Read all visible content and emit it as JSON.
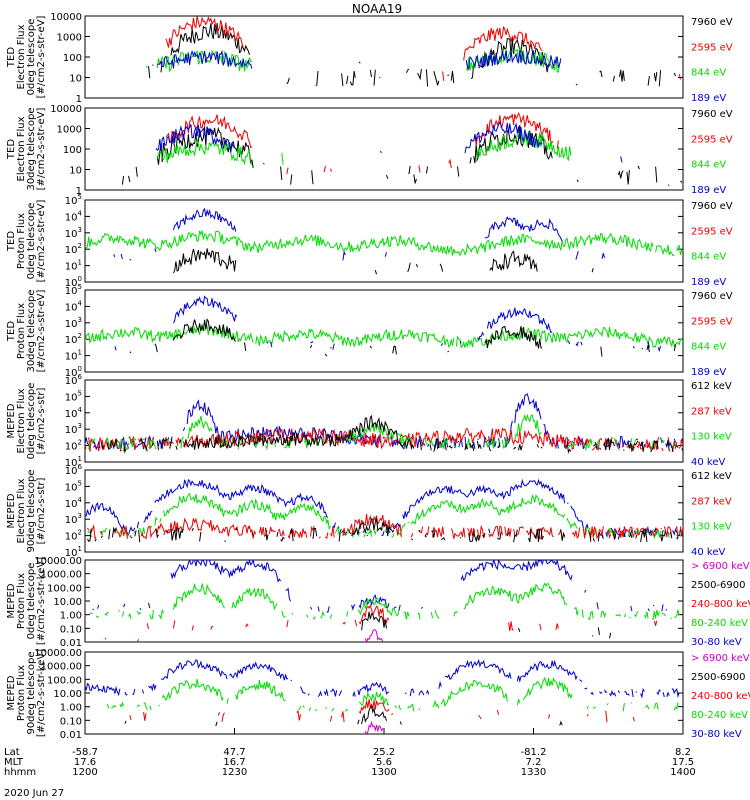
{
  "title": "NOAA19",
  "date_label": "2020 Jun 27",
  "colors": {
    "black": "#000000",
    "red": "#ee0000",
    "green": "#00dd00",
    "blue": "#0000cc",
    "magenta": "#cc00cc"
  },
  "x_axis": {
    "row_labels": [
      "Lat",
      "MLT",
      "hhmm"
    ],
    "ticks": [
      {
        "lat": "-58.7",
        "mlt": "17.6",
        "time": "1200"
      },
      {
        "lat": "47.7",
        "mlt": "16.7",
        "time": "1230"
      },
      {
        "lat": "25.2",
        "mlt": "5.6",
        "time": "1300"
      },
      {
        "lat": "-81.2",
        "mlt": "7.2",
        "time": "1330"
      },
      {
        "lat": "8.2",
        "mlt": "17.5",
        "time": "1400"
      }
    ]
  },
  "chart_data": [
    {
      "type": "line",
      "ylog": true,
      "ylabel": [
        "TED",
        "Electron Flux",
        "0deg telescope",
        "[#/cm2-s-str-eV]"
      ],
      "yticks": [
        "10000",
        "1000",
        "100",
        "10",
        "1"
      ],
      "legend": [
        {
          "label": "7960 eV",
          "color": "black"
        },
        {
          "label": "2595 eV",
          "color": "red"
        },
        {
          "label": "844 eV",
          "color": "green"
        },
        {
          "label": "189 eV",
          "color": "blue"
        }
      ],
      "series": [
        {
          "color": "black",
          "base": 10,
          "bumps": [
            [
              12.5,
              2.5,
              1800
            ],
            [
              43,
              2.2,
              300
            ]
          ],
          "fill": 0.35,
          "noise": 0.45
        },
        {
          "color": "red",
          "base": 8,
          "bumps": [
            [
              12,
              2.5,
              5000
            ],
            [
              42,
              2.5,
              1500
            ]
          ],
          "fill": 0.12,
          "noise": 0.35
        },
        {
          "color": "green",
          "base": 30,
          "bumps": [
            [
              12,
              3,
              80
            ],
            [
              43,
              3,
              100
            ]
          ],
          "fill": 0.1,
          "noise": 0.4
        },
        {
          "color": "blue",
          "base": 40,
          "bumps": [
            [
              12,
              3,
              60
            ],
            [
              43,
              3,
              70
            ]
          ],
          "fill": 0.06,
          "noise": 0.35
        }
      ]
    },
    {
      "type": "line",
      "ylog": true,
      "ylabel": [
        "TED",
        "Electron Flux",
        "30deg telescope",
        "[#/cm2-s-str-eV]"
      ],
      "yticks": [
        "10000",
        "1000",
        "100",
        "10",
        "1"
      ],
      "legend": [
        {
          "label": "7960 eV",
          "color": "black"
        },
        {
          "label": "2595 eV",
          "color": "red"
        },
        {
          "label": "844 eV",
          "color": "green"
        },
        {
          "label": "189 eV",
          "color": "blue"
        }
      ],
      "series": [
        {
          "color": "black",
          "base": 5,
          "bumps": [
            [
              12,
              3,
              400
            ],
            [
              43,
              2.5,
              500
            ]
          ],
          "fill": 0.25,
          "noise": 0.5
        },
        {
          "color": "red",
          "base": 10,
          "bumps": [
            [
              12.5,
              2.7,
              2500
            ],
            [
              43,
              2.5,
              3000
            ]
          ],
          "fill": 0.12,
          "noise": 0.35
        },
        {
          "color": "green",
          "base": 30,
          "bumps": [
            [
              12,
              3,
              100
            ],
            [
              44,
              3,
              300
            ]
          ],
          "fill": 0.06,
          "noise": 0.4
        },
        {
          "color": "blue",
          "base": 40,
          "bumps": [
            [
              11,
              2.5,
              700
            ],
            [
              42,
              2.5,
              900
            ]
          ],
          "fill": 0.06,
          "noise": 0.35
        }
      ]
    },
    {
      "type": "line",
      "ylog": true,
      "ylabel": [
        "TED",
        "Proton Flux",
        "0deg telescope",
        "[#/cm2-s-str-eV]"
      ],
      "yticks": [
        "10^5",
        "10^4",
        "10^3",
        "10^2",
        "10^1",
        "10^0"
      ],
      "legend": [
        {
          "label": "7960 eV",
          "color": "black"
        },
        {
          "label": "2595 eV",
          "color": "red"
        },
        {
          "label": "844 eV",
          "color": "green"
        },
        {
          "label": "189 eV",
          "color": "blue"
        }
      ],
      "series": [
        {
          "color": "green",
          "base": 80,
          "bumps": [
            [
              3,
              3,
              400
            ],
            [
              12,
              3,
              600
            ],
            [
              22,
              3,
              300
            ],
            [
              31,
              3,
              250
            ],
            [
              44,
              3,
              300
            ],
            [
              52,
              3,
              400
            ]
          ],
          "fill": 0.95,
          "noise": 0.35
        },
        {
          "color": "blue",
          "base": 40,
          "bumps": [
            [
              12,
              2,
              15000
            ],
            [
              42.5,
              1.5,
              5000
            ],
            [
              46,
              1.2,
              4000
            ]
          ],
          "fill": 0.18,
          "noise": 0.3
        },
        {
          "color": "black",
          "base": 5,
          "bumps": [
            [
              12,
              2,
              40
            ],
            [
              43,
              1.5,
              20
            ]
          ],
          "fill": 0.1,
          "noise": 0.5
        }
      ]
    },
    {
      "type": "line",
      "ylog": true,
      "ylabel": [
        "TED",
        "Proton Flux",
        "30deg telescope",
        "[#/cm2-s-str-eV]"
      ],
      "yticks": [
        "10^5",
        "10^4",
        "10^3",
        "10^2",
        "10^1",
        "10^0"
      ],
      "legend": [
        {
          "label": "7960 eV",
          "color": "black"
        },
        {
          "label": "2595 eV",
          "color": "red"
        },
        {
          "label": "844 eV",
          "color": "green"
        },
        {
          "label": "189 eV",
          "color": "blue"
        }
      ],
      "series": [
        {
          "color": "green",
          "base": 60,
          "bumps": [
            [
              4,
              3,
              200
            ],
            [
              12,
              3,
              300
            ],
            [
              22,
              3,
              150
            ],
            [
              32,
              3,
              150
            ],
            [
              44,
              3,
              150
            ],
            [
              52,
              3,
              200
            ]
          ],
          "fill": 0.95,
          "noise": 0.35
        },
        {
          "color": "blue",
          "base": 40,
          "bumps": [
            [
              12,
              2,
              20000
            ],
            [
              43.5,
              2,
              5000
            ]
          ],
          "fill": 0.2,
          "noise": 0.3
        },
        {
          "color": "black",
          "base": 20,
          "bumps": [
            [
              12,
              2,
              800
            ],
            [
              43,
              1.8,
              300
            ]
          ],
          "fill": 0.2,
          "noise": 0.4
        }
      ]
    },
    {
      "type": "line",
      "ylog": true,
      "ylabel": [
        "MEPED",
        "Electron Flux",
        "0deg telescope",
        "[#/cm2-s-str]"
      ],
      "yticks": [
        "10^6",
        "10^5",
        "10^4",
        "10^3",
        "10^2",
        "10^1"
      ],
      "legend": [
        {
          "label": "612 keV",
          "color": "black"
        },
        {
          "label": "287 keV",
          "color": "red"
        },
        {
          "label": "130 keV",
          "color": "green"
        },
        {
          "label": "40 keV",
          "color": "blue"
        }
      ],
      "series": [
        {
          "color": "blue",
          "base": 150,
          "bumps": [
            [
              11.5,
              0.8,
              40000
            ],
            [
              44.5,
              0.8,
              80000
            ],
            [
              20,
              6,
              500
            ]
          ],
          "fill": 0.7,
          "noise": 0.4
        },
        {
          "color": "red",
          "base": 120,
          "bumps": [
            [
              21,
              7,
              300
            ],
            [
              40,
              6,
              300
            ]
          ],
          "fill": 0.85,
          "noise": 0.45
        },
        {
          "color": "green",
          "base": 130,
          "bumps": [
            [
              11.5,
              0.8,
              3000
            ],
            [
              44.5,
              0.8,
              5000
            ],
            [
              29,
              1.8,
              1000
            ]
          ],
          "fill": 0.6,
          "noise": 0.35
        },
        {
          "color": "black",
          "base": 100,
          "bumps": [
            [
              29,
              1.5,
              2500
            ],
            [
              21,
              7,
              150
            ]
          ],
          "fill": 0.6,
          "noise": 0.4
        }
      ]
    },
    {
      "type": "line",
      "ylog": true,
      "ylabel": [
        "MEPED",
        "Electron Flux",
        "90deg telescope",
        "[#/cm2-s-str]"
      ],
      "yticks": [
        "10^6",
        "10^5",
        "10^4",
        "10^3",
        "10^2",
        "10^1"
      ],
      "legend": [
        {
          "label": "612 keV",
          "color": "black"
        },
        {
          "label": "287 keV",
          "color": "red"
        },
        {
          "label": "130 keV",
          "color": "green"
        },
        {
          "label": "40 keV",
          "color": "blue"
        }
      ],
      "series": [
        {
          "color": "blue",
          "base": 150,
          "bumps": [
            [
              1.5,
              1.2,
              6000
            ],
            [
              11,
              2.2,
              180000
            ],
            [
              17,
              1.8,
              80000
            ],
            [
              22,
              1.5,
              20000
            ],
            [
              36,
              2,
              70000
            ],
            [
              40,
              1.5,
              60000
            ],
            [
              45,
              2,
              180000
            ]
          ],
          "fill": 0.75,
          "noise": 0.25
        },
        {
          "color": "green",
          "base": 150,
          "bumps": [
            [
              11,
              2,
              20000
            ],
            [
              17,
              1.6,
              8000
            ],
            [
              22,
              1.5,
              6000
            ],
            [
              36,
              2,
              7000
            ],
            [
              40,
              1.5,
              8000
            ],
            [
              45,
              2,
              15000
            ]
          ],
          "fill": 0.7,
          "noise": 0.3
        },
        {
          "color": "red",
          "base": 160,
          "bumps": [
            [
              11,
              2.5,
              300
            ],
            [
              29,
              1.5,
              1000
            ]
          ],
          "fill": 0.8,
          "noise": 0.4
        },
        {
          "color": "black",
          "base": 110,
          "bumps": [
            [
              29,
              1.2,
              400
            ]
          ],
          "fill": 0.45,
          "noise": 0.45
        }
      ]
    },
    {
      "type": "line",
      "ylog": true,
      "ylabel": [
        "MEPED",
        "Proton Flux",
        "0deg telescope",
        "[#/cm2-s-str-keV]"
      ],
      "yticks": [
        "10000.00",
        "1000.00",
        "100.00",
        "10.00",
        "1.00",
        "0.10",
        "0.01"
      ],
      "legend": [
        {
          "label": "> 6900 keV",
          "color": "magenta"
        },
        {
          "label": "2500-6900",
          "color": "black"
        },
        {
          "label": "240-800 keV",
          "color": "red"
        },
        {
          "label": "80-240 keV",
          "color": "green"
        },
        {
          "label": "30-80 keV",
          "color": "blue"
        }
      ],
      "series": [
        {
          "color": "blue",
          "base": 3,
          "bumps": [
            [
              11.5,
              1.8,
              8000
            ],
            [
              17,
              1.5,
              6000
            ],
            [
              41,
              2,
              5000
            ],
            [
              46,
              1.8,
              7000
            ],
            [
              29,
              1,
              10
            ]
          ],
          "fill": 0.35,
          "noise": 0.35
        },
        {
          "color": "green",
          "base": 1,
          "bumps": [
            [
              11.5,
              1.5,
              80
            ],
            [
              17,
              1.3,
              50
            ],
            [
              41,
              1.8,
              60
            ],
            [
              46,
              1.5,
              90
            ],
            [
              29,
              1,
              8
            ]
          ],
          "fill": 0.55,
          "noise": 0.35
        },
        {
          "color": "red",
          "base": 0.15,
          "bumps": [
            [
              29,
              1,
              2
            ]
          ],
          "fill": 0.2,
          "noise": 0.45
        },
        {
          "color": "black",
          "base": 0.05,
          "bumps": [
            [
              29,
              0.8,
              0.8
            ]
          ],
          "fill": 0.08,
          "noise": 0.45
        },
        {
          "color": "magenta",
          "base": 0.01,
          "bumps": [
            [
              29,
              0.6,
              0.03
            ]
          ],
          "fill": 0.04,
          "noise": 0.3
        }
      ]
    },
    {
      "type": "line",
      "ylog": true,
      "ylabel": [
        "MEPED",
        "Proton Flux",
        "90deg telescope",
        "[#/cm2-s-str-keV]"
      ],
      "yticks": [
        "10000.00",
        "1000.00",
        "100.00",
        "10.00",
        "1.00",
        "0.10",
        "0.01"
      ],
      "legend": [
        {
          "label": "> 6900 keV",
          "color": "magenta"
        },
        {
          "label": "2500-6900",
          "color": "black"
        },
        {
          "label": "240-800 keV",
          "color": "red"
        },
        {
          "label": "80-240 keV",
          "color": "green"
        },
        {
          "label": "30-80 keV",
          "color": "blue"
        }
      ],
      "series": [
        {
          "color": "blue",
          "base": 10,
          "bumps": [
            [
              1,
              1.5,
              20
            ],
            [
              11,
              2,
              1500
            ],
            [
              17.5,
              1.8,
              1000
            ],
            [
              39.5,
              2,
              1500
            ],
            [
              46.5,
              1.8,
              1200
            ],
            [
              29,
              1,
              20
            ]
          ],
          "fill": 0.6,
          "noise": 0.3
        },
        {
          "color": "green",
          "base": 1,
          "bumps": [
            [
              11,
              1.8,
              50
            ],
            [
              17.5,
              1.5,
              40
            ],
            [
              39.5,
              1.8,
              50
            ],
            [
              46.5,
              1.5,
              60
            ],
            [
              29,
              1,
              5
            ]
          ],
          "fill": 0.5,
          "noise": 0.35
        },
        {
          "color": "red",
          "base": 0.2,
          "bumps": [
            [
              29,
              1,
              1.5
            ]
          ],
          "fill": 0.2,
          "noise": 0.45
        },
        {
          "color": "black",
          "base": 0.05,
          "bumps": [
            [
              29,
              0.8,
              0.5
            ]
          ],
          "fill": 0.08,
          "noise": 0.4
        },
        {
          "color": "magenta",
          "base": 0.01,
          "bumps": [
            [
              29,
              0.6,
              0.03
            ]
          ],
          "fill": 0.04,
          "noise": 0.3
        }
      ]
    }
  ]
}
